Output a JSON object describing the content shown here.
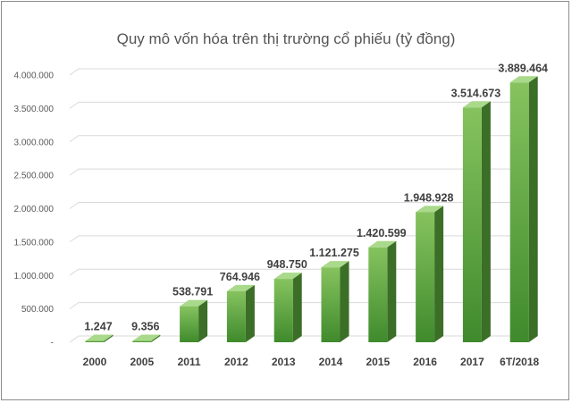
{
  "chart_data": {
    "type": "bar",
    "title": "Quy mô vốn hóa trên thị trường cổ phiếu (tỷ đồng)",
    "categories": [
      "2000",
      "2005",
      "2011",
      "2012",
      "2013",
      "2014",
      "2015",
      "2016",
      "2017",
      "6T/2018"
    ],
    "values": [
      1247,
      9356,
      538791,
      764946,
      948750,
      1121275,
      1420599,
      1948928,
      3514673,
      3889464
    ],
    "data_labels": [
      "1.247",
      "9.356",
      "538.791",
      "764.946",
      "948.750",
      "1.121.275",
      "1.420.599",
      "1.948.928",
      "3.514.673",
      "3.889.464"
    ],
    "y_ticks": [
      0,
      500000,
      1000000,
      1500000,
      2000000,
      2500000,
      3000000,
      3500000,
      4000000
    ],
    "y_tick_labels": [
      "-",
      "500.000",
      "1.000.000",
      "1.500.000",
      "2.000.000",
      "2.500.000",
      "3.000.000",
      "3.500.000",
      "4.000.000"
    ],
    "ylim": [
      0,
      4000000
    ],
    "xlabel": "",
    "ylabel": "",
    "grid": true,
    "legend": "none",
    "style": "3d-column",
    "colors": {
      "bar_front_top": "#86c35f",
      "bar_front_bottom": "#3f8a2c",
      "bar_side": "#3b6e26",
      "bar_top": "#a9d98a",
      "grid": "#d9d9d9"
    }
  }
}
